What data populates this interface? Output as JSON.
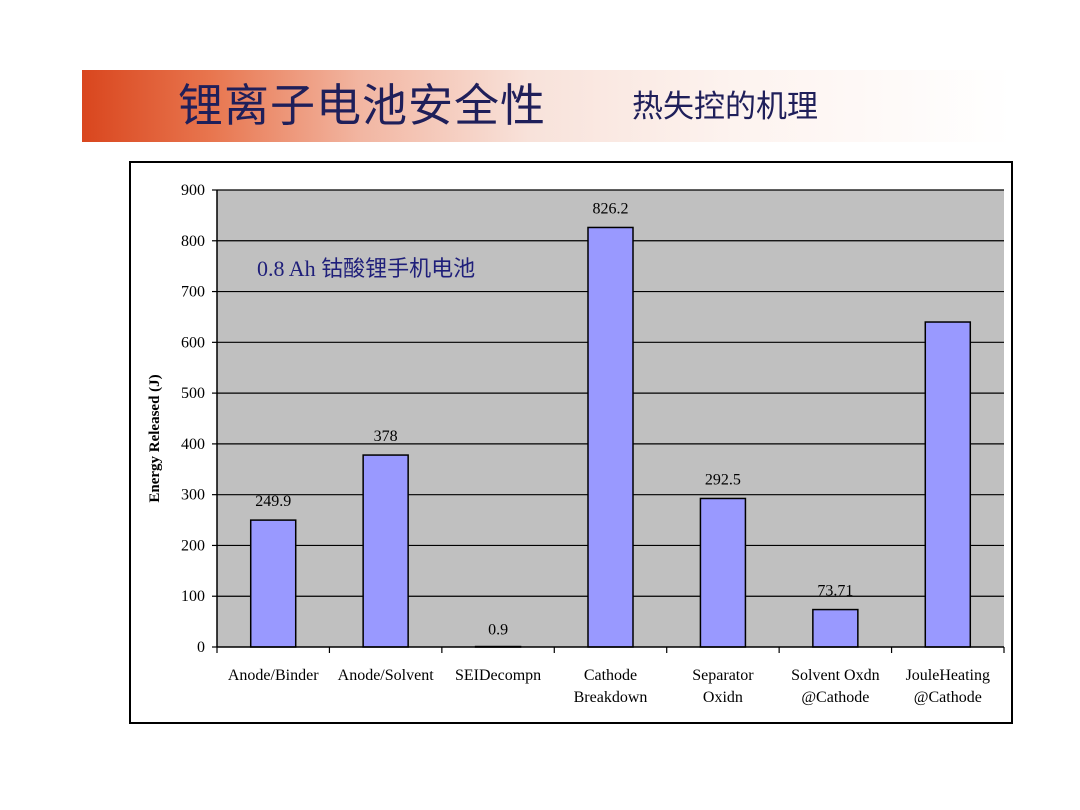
{
  "slide": {
    "title": "锂离子电池安全性",
    "subtitle": "热失控的机理"
  },
  "chart_data": {
    "type": "bar",
    "ylabel": "Energy Released (J)",
    "xlabel": "",
    "ylim": [
      0,
      900
    ],
    "yticks": [
      0,
      100,
      200,
      300,
      400,
      500,
      600,
      700,
      800,
      900
    ],
    "grid": true,
    "legend": "none",
    "annotation": "0.8 Ah 钴酸锂手机电池",
    "categories": [
      [
        "Anode/Binder"
      ],
      [
        "Anode/Solvent"
      ],
      [
        "SEIDecompn"
      ],
      [
        "Cathode",
        "Breakdown"
      ],
      [
        "Separator",
        "Oxidn"
      ],
      [
        "Solvent Oxdn",
        "@Cathode"
      ],
      [
        "JouleHeating",
        "@Cathode"
      ]
    ],
    "values": [
      249.9,
      378,
      0.9,
      826.2,
      292.5,
      73.71,
      640
    ],
    "data_labels": [
      "249.9",
      "378",
      "0.9",
      "826.2",
      "292.5",
      "73.71",
      ""
    ],
    "colors": {
      "bar_fill": "#9999ff",
      "bar_stroke": "#000000",
      "plot_background": "#c0c0c0",
      "gridline": "#000000",
      "annotation": "#1f1f7a"
    }
  }
}
